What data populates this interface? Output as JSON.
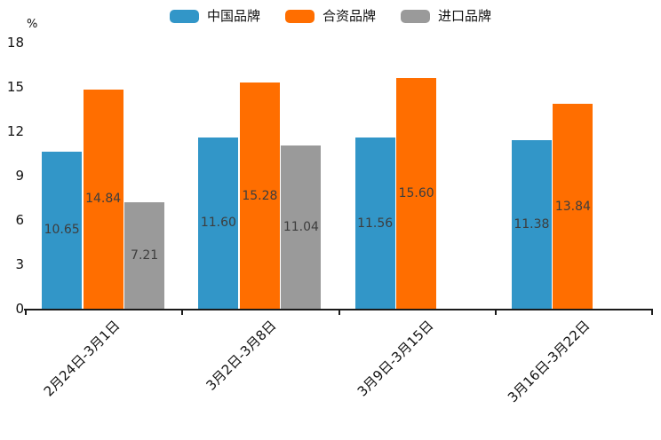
{
  "chart_data": {
    "type": "bar",
    "title": "",
    "ylabel": "%",
    "ylim": [
      0,
      18
    ],
    "yticks": [
      0,
      3,
      6,
      9,
      12,
      15,
      18
    ],
    "grid": false,
    "legend_position": "top-center",
    "categories": [
      "2月24日-3月1日",
      "3月2日-3月8日",
      "3月9日-3月15日",
      "3月16日-3月22日"
    ],
    "series": [
      {
        "name": "中国品牌",
        "color": "#3296C8",
        "values": [
          10.65,
          11.6,
          11.56,
          11.38
        ]
      },
      {
        "name": "合资品牌",
        "color": "#FF6E00",
        "values": [
          14.84,
          15.28,
          15.6,
          13.84
        ]
      },
      {
        "name": "进口品牌",
        "color": "#9A9A9A",
        "values": [
          7.21,
          11.04,
          null,
          null
        ]
      }
    ],
    "value_label_decimals": 2,
    "value_label_color": "#3d3d3d",
    "axis_color": "#1a1a1a"
  }
}
